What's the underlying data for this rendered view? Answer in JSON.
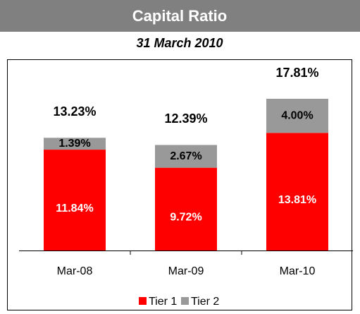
{
  "chart_data": {
    "type": "stacked-bar",
    "title": "Capital Ratio",
    "subtitle": "31 March 2010",
    "categories": [
      "Mar-08",
      "Mar-09",
      "Mar-10"
    ],
    "series": [
      {
        "name": "Tier 1",
        "color": "#ff0000",
        "values": [
          11.84,
          9.72,
          13.81
        ],
        "value_labels": [
          "11.84%",
          "9.72%",
          "13.81%"
        ]
      },
      {
        "name": "Tier 2",
        "color": "#999999",
        "values": [
          1.39,
          2.67,
          4.0
        ],
        "value_labels": [
          "1.39%",
          "2.67%",
          "4.00%"
        ]
      }
    ],
    "totals": [
      13.23,
      12.39,
      17.81
    ],
    "total_labels": [
      "13.23%",
      "12.39%",
      "17.81%"
    ]
  }
}
